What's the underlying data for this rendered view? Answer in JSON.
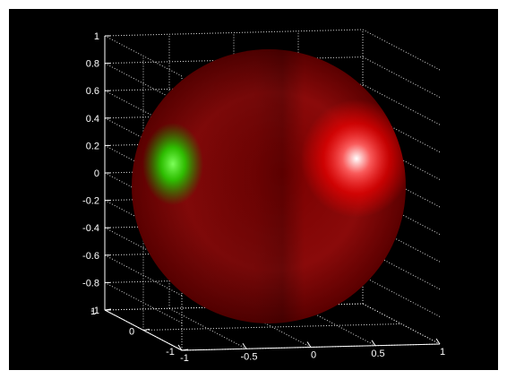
{
  "colors": {
    "figure_background": "#ffffff",
    "axes_background": "#000000",
    "axis_color": "#ffffff",
    "surface_color": "#8b0000",
    "highlight_red": "#ff2a2a",
    "highlight_green": "#33ff33"
  },
  "chart_data": {
    "type": "surface3d",
    "surface": "unit sphere",
    "title": "",
    "xlabel": "",
    "ylabel": "",
    "zlabel": "",
    "xlim": [
      -1,
      1
    ],
    "ylim": [
      -1,
      1
    ],
    "zlim": [
      -1,
      1
    ],
    "grid": true,
    "box": true,
    "lighting": [
      {
        "name": "",
        "color": "#ff0000",
        "location": "right"
      },
      {
        "name": "",
        "color": "#00ff00",
        "location": "left"
      }
    ],
    "z_ticks": [
      "1",
      "0.8",
      "0.6",
      "0.4",
      "0.2",
      "0",
      "-0.2",
      "-0.4",
      "-0.6",
      "-0.8",
      "-1"
    ],
    "x_ticks": [
      "-1",
      "-0.5",
      "0",
      "0.5",
      "1"
    ],
    "y_ticks": [
      "1",
      "0",
      "-1"
    ]
  }
}
